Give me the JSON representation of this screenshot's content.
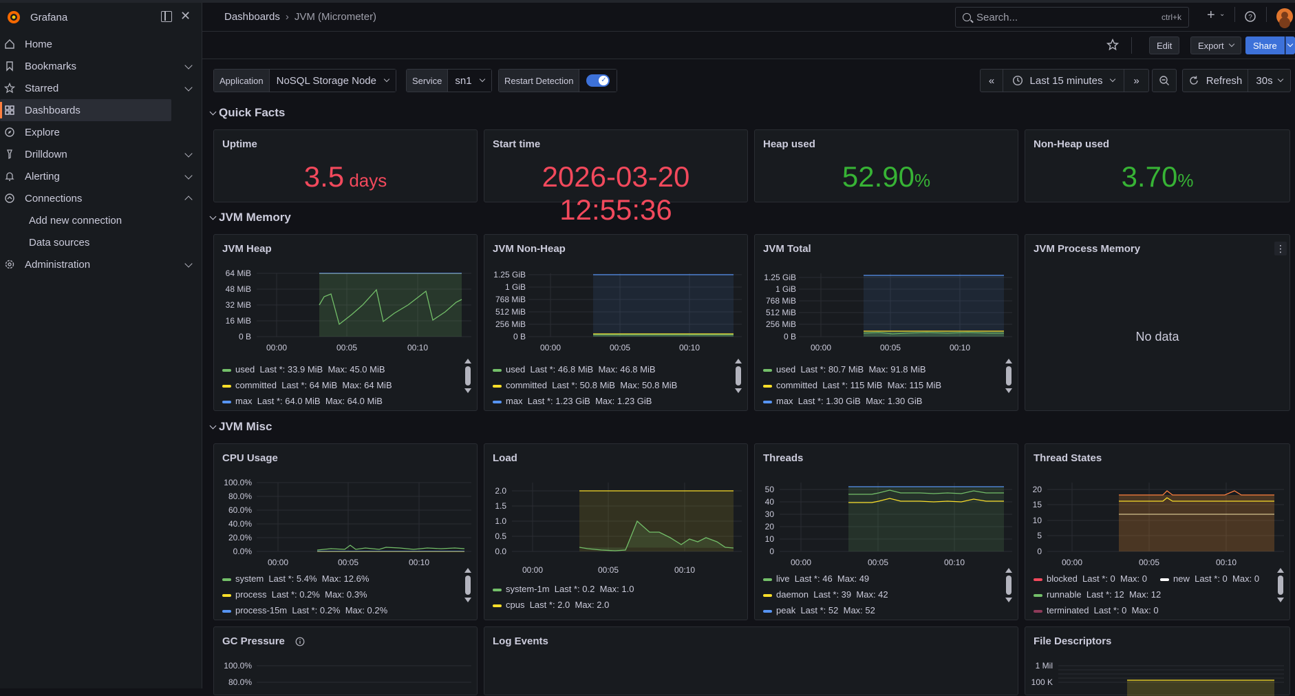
{
  "app": {
    "name": "Grafana"
  },
  "sidebar": {
    "items": [
      {
        "label": "Home"
      },
      {
        "label": "Bookmarks"
      },
      {
        "label": "Starred"
      },
      {
        "label": "Dashboards"
      },
      {
        "label": "Explore"
      },
      {
        "label": "Drilldown"
      },
      {
        "label": "Alerting"
      },
      {
        "label": "Connections"
      },
      {
        "label": "Add new connection"
      },
      {
        "label": "Data sources"
      },
      {
        "label": "Administration"
      }
    ]
  },
  "header": {
    "breadcrumb_root": "Dashboards",
    "breadcrumb_sep": "›",
    "breadcrumb_current": "JVM (Micrometer)",
    "search_placeholder": "Search...",
    "search_shortcut": "ctrl+k"
  },
  "toolbar": {
    "edit": "Edit",
    "export": "Export",
    "share": "Share"
  },
  "variables": {
    "application_label": "Application",
    "application_value": "NoSQL Storage Node",
    "service_label": "Service",
    "service_value": "sn1",
    "restart_label": "Restart Detection"
  },
  "time": {
    "range": "Last 15 minutes",
    "refresh": "Refresh",
    "interval": "30s"
  },
  "rows": {
    "quick_facts": "Quick Facts",
    "jvm_memory": "JVM Memory",
    "jvm_misc": "JVM Misc"
  },
  "stats": {
    "uptime": {
      "title": "Uptime",
      "value": "3.5",
      "unit": " days"
    },
    "start_time": {
      "title": "Start time",
      "value": "2026-03-20 12:55:36"
    },
    "heap_used": {
      "title": "Heap used",
      "value": "52.90",
      "unit": "%"
    },
    "nonheap_used": {
      "title": "Non-Heap used",
      "value": "3.70",
      "unit": "%"
    }
  },
  "colors": {
    "green": "#73bf69",
    "yellow": "#fade2a",
    "blue": "#5794f2",
    "red": "#f2495c",
    "orange": "#ff9830",
    "white": "#ffffff",
    "purple": "#b877d9",
    "maroon": "#8f3b5a"
  },
  "panels": {
    "jvm_heap": {
      "title": "JVM Heap",
      "y_ticks": [
        "64 MiB",
        "48 MiB",
        "32 MiB",
        "16 MiB",
        "0 B"
      ],
      "x_ticks": [
        "00:00",
        "00:05",
        "00:10"
      ],
      "legend": [
        {
          "name": "used",
          "last": "Last *: 33.9 MiB",
          "max": "Max: 45.0 MiB",
          "color": "#73bf69"
        },
        {
          "name": "committed",
          "last": "Last *: 64 MiB",
          "max": "Max: 64 MiB",
          "color": "#fade2a"
        },
        {
          "name": "max",
          "last": "Last *: 64.0 MiB",
          "max": "Max: 64.0 MiB",
          "color": "#5794f2"
        }
      ]
    },
    "jvm_nonheap": {
      "title": "JVM Non-Heap",
      "y_ticks": [
        "1.25 GiB",
        "1 GiB",
        "768 MiB",
        "512 MiB",
        "256 MiB",
        "0 B"
      ],
      "x_ticks": [
        "00:00",
        "00:05",
        "00:10"
      ],
      "legend": [
        {
          "name": "used",
          "last": "Last *: 46.8 MiB",
          "max": "Max: 46.8 MiB",
          "color": "#73bf69"
        },
        {
          "name": "committed",
          "last": "Last *: 50.8 MiB",
          "max": "Max: 50.8 MiB",
          "color": "#fade2a"
        },
        {
          "name": "max",
          "last": "Last *: 1.23 GiB",
          "max": "Max: 1.23 GiB",
          "color": "#5794f2"
        }
      ]
    },
    "jvm_total": {
      "title": "JVM Total",
      "y_ticks": [
        "1.25 GiB",
        "1 GiB",
        "768 MiB",
        "512 MiB",
        "256 MiB",
        "0 B"
      ],
      "x_ticks": [
        "00:00",
        "00:05",
        "00:10"
      ],
      "legend": [
        {
          "name": "used",
          "last": "Last *: 80.7 MiB",
          "max": "Max: 91.8 MiB",
          "color": "#73bf69"
        },
        {
          "name": "committed",
          "last": "Last *: 115 MiB",
          "max": "Max: 115 MiB",
          "color": "#fade2a"
        },
        {
          "name": "max",
          "last": "Last *: 1.30 GiB",
          "max": "Max: 1.30 GiB",
          "color": "#5794f2"
        }
      ]
    },
    "jvm_process_memory": {
      "title": "JVM Process Memory",
      "no_data": "No data"
    },
    "cpu_usage": {
      "title": "CPU Usage",
      "y_ticks": [
        "100.0%",
        "80.0%",
        "60.0%",
        "40.0%",
        "20.0%",
        "0.0%"
      ],
      "x_ticks": [
        "00:00",
        "00:05",
        "00:10"
      ],
      "legend": [
        {
          "name": "system",
          "last": "Last *: 5.4%",
          "max": "Max: 12.6%",
          "color": "#73bf69"
        },
        {
          "name": "process",
          "last": "Last *: 0.2%",
          "max": "Max: 0.3%",
          "color": "#fade2a"
        },
        {
          "name": "process-15m",
          "last": "Last *: 0.2%",
          "max": "Max: 0.2%",
          "color": "#5794f2"
        }
      ]
    },
    "load": {
      "title": "Load",
      "y_ticks": [
        "2.0",
        "1.5",
        "1.0",
        "0.5",
        "0.0"
      ],
      "x_ticks": [
        "00:00",
        "00:05",
        "00:10"
      ],
      "legend": [
        {
          "name": "system-1m",
          "last": "Last *: 0.2",
          "max": "Max: 1.0",
          "color": "#73bf69"
        },
        {
          "name": "cpus",
          "last": "Last *: 2.0",
          "max": "Max: 2.0",
          "color": "#fade2a"
        }
      ]
    },
    "threads": {
      "title": "Threads",
      "y_ticks": [
        "50",
        "40",
        "30",
        "20",
        "10",
        "0"
      ],
      "x_ticks": [
        "00:00",
        "00:05",
        "00:10"
      ],
      "legend": [
        {
          "name": "live",
          "last": "Last *: 46",
          "max": "Max: 49",
          "color": "#73bf69"
        },
        {
          "name": "daemon",
          "last": "Last *: 39",
          "max": "Max: 42",
          "color": "#fade2a"
        },
        {
          "name": "peak",
          "last": "Last *: 52",
          "max": "Max: 52",
          "color": "#5794f2"
        }
      ]
    },
    "thread_states": {
      "title": "Thread States",
      "y_ticks": [
        "20",
        "15",
        "10",
        "5",
        "0"
      ],
      "x_ticks": [
        "00:00",
        "00:05",
        "00:10"
      ],
      "legend_row1a": {
        "name": "blocked",
        "last": "Last *: 0",
        "max": "Max: 0",
        "color": "#f2495c"
      },
      "legend_row1b": {
        "name": "new",
        "last": "Last *: 0",
        "max": "Max: 0",
        "color": "#ffffff"
      },
      "legend_row2": {
        "name": "runnable",
        "last": "Last *: 12",
        "max": "Max: 12",
        "color": "#73bf69"
      },
      "legend_row3": {
        "name": "terminated",
        "last": "Last *: 0",
        "max": "Max: 0",
        "color": "#8f3b5a"
      }
    },
    "gc_pressure": {
      "title": "GC Pressure",
      "y_ticks": [
        "100.0%",
        "80.0%"
      ]
    },
    "log_events": {
      "title": "Log Events"
    },
    "file_descriptors": {
      "title": "File Descriptors",
      "y_ticks": [
        "1 Mil",
        "100 K"
      ]
    }
  }
}
